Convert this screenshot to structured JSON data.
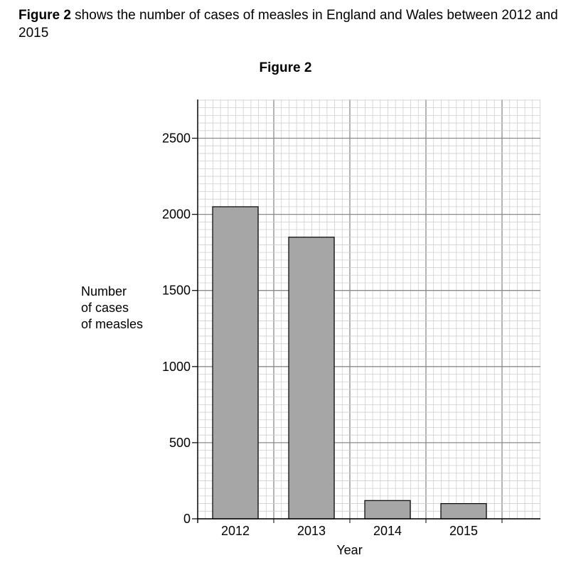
{
  "intro": {
    "bold": "Figure 2",
    "text": " shows the number of cases of measles in England and Wales between 2012 and 2015"
  },
  "chart_data": {
    "type": "bar",
    "title": "Figure 2",
    "xlabel": "Year",
    "ylabel": [
      "Number",
      "of cases",
      "of measles"
    ],
    "categories": [
      "2012",
      "2013",
      "2014",
      "2015"
    ],
    "values": [
      2050,
      1850,
      120,
      100
    ],
    "ylim": [
      0,
      2500
    ],
    "yticks": [
      0,
      500,
      1000,
      1500,
      2000,
      2500
    ],
    "grid": true,
    "bar_color": "#a6a6a6"
  }
}
